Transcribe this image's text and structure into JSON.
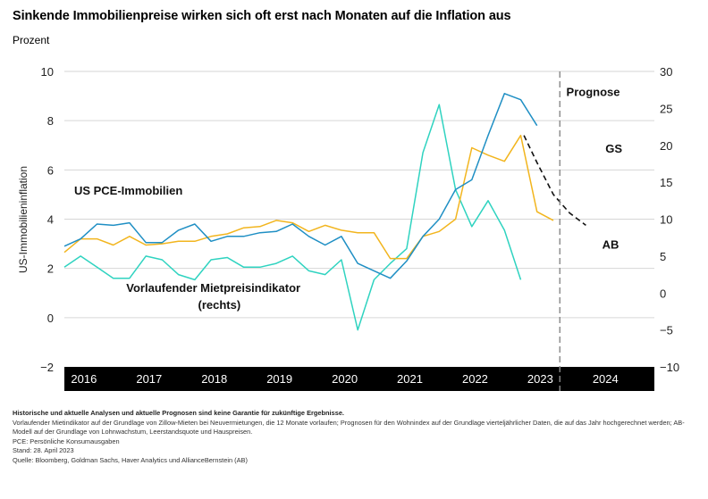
{
  "title": "Sinkende Immobilienpreise wirken sich oft erst nach Monaten auf die Inflation aus",
  "subtitle": "Prozent",
  "colors": {
    "pce": "#1f8fc4",
    "rent": "#2fd3c0",
    "ab": "#f2b51e",
    "gs": "#111111",
    "axis_band": "#000000"
  },
  "chart_data": {
    "type": "line",
    "ylabel": "US-Immobilieninflation",
    "ylim_left": [
      -2,
      10
    ],
    "yticks_left": [
      -2,
      0,
      2,
      4,
      6,
      8,
      10
    ],
    "ylim_right": [
      -10,
      30
    ],
    "yticks_right": [
      -10,
      -5,
      0,
      5,
      10,
      15,
      20,
      25,
      30
    ],
    "xlim": [
      2015.7,
      2024.75
    ],
    "x_tick_labels": [
      {
        "x": 2016.0,
        "label": "2016"
      },
      {
        "x": 2017.0,
        "label": "2017"
      },
      {
        "x": 2018.0,
        "label": "2018"
      },
      {
        "x": 2019.0,
        "label": "2019"
      },
      {
        "x": 2020.0,
        "label": "2020"
      },
      {
        "x": 2021.0,
        "label": "2021"
      },
      {
        "x": 2022.0,
        "label": "2022"
      },
      {
        "x": 2023.0,
        "label": "2023"
      },
      {
        "x": 2024.0,
        "label": "2024"
      }
    ],
    "forecast_start": 2023.3,
    "annotations": [
      {
        "text": "Prognose",
        "x": 2023.4,
        "y": 9.0,
        "axis": "left"
      },
      {
        "text": "GS",
        "x": 2024.0,
        "y": 6.7,
        "axis": "left"
      },
      {
        "text": "AB",
        "x": 2023.95,
        "y": 2.8,
        "axis": "left"
      },
      {
        "text": "US PCE-Immobilien",
        "x": 2015.85,
        "y": 5.0,
        "axis": "left"
      },
      {
        "text": "Vorlaufender Mietpreisindikator",
        "x": 2016.65,
        "y": 1.05,
        "axis": "left"
      },
      {
        "text": "(rechts)",
        "x": 2017.75,
        "y": 0.35,
        "axis": "left"
      }
    ],
    "series": [
      {
        "name": "US PCE-Immobilien",
        "axis": "left",
        "style": "solid",
        "x": [
          2015.7,
          2015.95,
          2016.2,
          2016.45,
          2016.7,
          2016.95,
          2017.2,
          2017.45,
          2017.7,
          2017.95,
          2018.2,
          2018.45,
          2018.7,
          2018.95,
          2019.2,
          2019.45,
          2019.7,
          2019.95,
          2020.2,
          2020.45,
          2020.7,
          2020.95,
          2021.2,
          2021.45,
          2021.7,
          2021.95,
          2022.2,
          2022.45,
          2022.7,
          2022.95,
          2023.2
        ],
        "y": [
          2.9,
          3.2,
          3.8,
          3.75,
          3.85,
          3.05,
          3.05,
          3.55,
          3.8,
          3.1,
          3.3,
          3.3,
          3.45,
          3.5,
          3.8,
          3.3,
          2.95,
          3.3,
          2.2,
          1.9,
          1.6,
          2.3,
          3.3,
          4.0,
          5.2,
          5.6,
          7.4,
          9.1,
          8.85,
          7.8,
          null
        ]
      },
      {
        "name": "Vorlaufender Mietpreisindikator (rechts)",
        "axis": "right",
        "style": "solid",
        "x": [
          2015.7,
          2015.95,
          2016.2,
          2016.45,
          2016.7,
          2016.95,
          2017.2,
          2017.45,
          2017.7,
          2017.95,
          2018.2,
          2018.45,
          2018.7,
          2018.95,
          2019.2,
          2019.45,
          2019.7,
          2019.95,
          2020.2,
          2020.45,
          2020.7,
          2020.95,
          2021.2,
          2021.45,
          2021.7,
          2021.95,
          2022.2,
          2022.45,
          2022.7,
          2022.95,
          2023.2
        ],
        "y": [
          3.5,
          5.0,
          3.5,
          2.0,
          2.0,
          5.0,
          4.5,
          2.5,
          1.8,
          4.5,
          4.8,
          3.5,
          3.5,
          4.0,
          5.0,
          3.0,
          2.5,
          4.5,
          -5.0,
          1.8,
          4.0,
          6.0,
          19.0,
          25.5,
          14.0,
          9.0,
          12.5,
          8.5,
          1.8,
          null,
          null
        ]
      },
      {
        "name": "AB",
        "axis": "left",
        "style": "solid",
        "x": [
          2015.7,
          2015.95,
          2016.2,
          2016.45,
          2016.7,
          2016.95,
          2017.2,
          2017.45,
          2017.7,
          2017.95,
          2018.2,
          2018.45,
          2018.7,
          2018.95,
          2019.2,
          2019.45,
          2019.7,
          2019.95,
          2020.2,
          2020.45,
          2020.7,
          2020.95,
          2021.2,
          2021.45,
          2021.7,
          2021.95,
          2022.2,
          2022.45,
          2022.7,
          2022.95,
          2023.2
        ],
        "y": [
          2.65,
          3.2,
          3.2,
          2.95,
          3.3,
          2.95,
          3.0,
          3.1,
          3.1,
          3.3,
          3.4,
          3.65,
          3.7,
          3.95,
          3.85,
          3.5,
          3.75,
          3.55,
          3.45,
          3.45,
          2.4,
          2.4,
          3.3,
          3.5,
          4.0,
          6.9,
          6.6,
          6.35,
          7.4,
          4.3,
          3.95
        ]
      },
      {
        "name": "GS",
        "axis": "left",
        "style": "dashed",
        "x": [
          2022.75,
          2022.95,
          2023.2,
          2023.45,
          2023.7
        ],
        "y": [
          7.4,
          6.3,
          5.0,
          4.25,
          3.75
        ]
      }
    ]
  },
  "footer": {
    "disclaimer": "Historische und aktuelle Analysen und aktuelle Prognosen sind keine Garantie für zukünftige Ergebnisse.",
    "note1": "Vorlaufender Mietindikator auf der Grundlage von Zillow-Mieten bei Neuvermietungen, die 12 Monate vorlaufen; Prognosen für den Wohnindex auf der Grundlage vierteljährlicher Daten, die auf das Jahr hochgerechnet werden; AB-Modell auf der Grundlage von Lohnwachstum, Leerstandsquote und Hauspreisen.",
    "note2": "PCE: Persönliche Konsumausgaben",
    "date": "Stand: 28. April 2023",
    "source": "Quelle: Bloomberg, Goldman Sachs, Haver Analytics und AllianceBernstein (AB)"
  }
}
